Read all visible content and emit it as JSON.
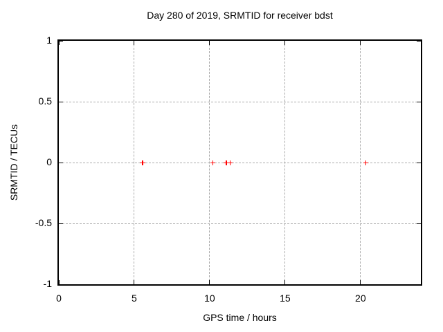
{
  "chart_data": {
    "type": "scatter",
    "title": "Day 280 of 2019, SRMTID for receiver bdst",
    "xlabel": "GPS time / hours",
    "ylabel": "SRMTID / TECUs",
    "xlim": [
      0,
      24
    ],
    "ylim": [
      -1,
      1
    ],
    "xtick_values": [
      0,
      5,
      10,
      15,
      20
    ],
    "xtick_labels": [
      "0",
      "5",
      "10",
      "15",
      "20"
    ],
    "ytick_values": [
      1,
      0.5,
      0,
      -0.5,
      -1
    ],
    "ytick_labels": [
      "1",
      "0.5",
      "0",
      "-0.5",
      "-1"
    ],
    "grid": true,
    "grid_color": "#aaaaaa",
    "border_color": "#000000",
    "marker": "plus",
    "marker_color": "#ff0000",
    "legend": "none",
    "series": [
      {
        "name": "SRMTID",
        "x": [
          5.52,
          5.57,
          10.22,
          11.07,
          11.12,
          11.36,
          20.33
        ],
        "y": [
          0,
          0,
          0,
          0,
          0,
          0,
          0
        ]
      }
    ]
  }
}
